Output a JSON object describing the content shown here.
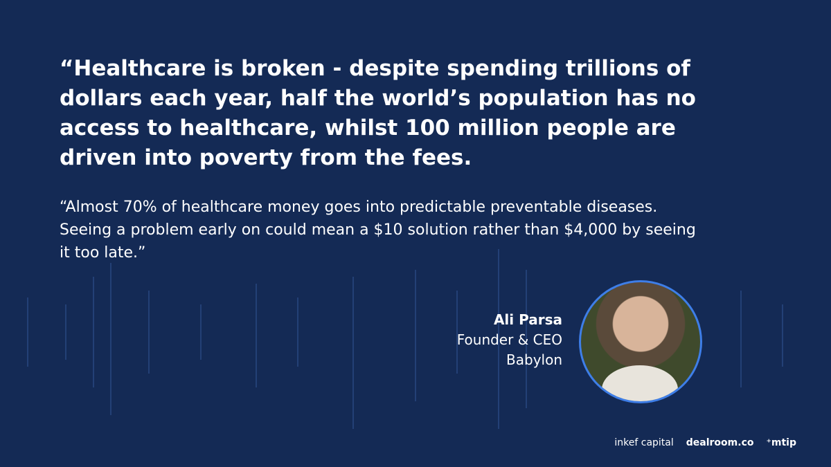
{
  "quote": {
    "headline": "“Healthcare is broken - despite spending trillions of dollars each year, half the world’s population has no access to healthcare, whilst 100 million people are driven into poverty from the fees.",
    "body": "“Almost 70% of healthcare money goes into predictable preventable diseases. Seeing a problem early on could mean a $10 solution rather than $4,000 by seeing it too late.”"
  },
  "person": {
    "name": "Ali Parsa",
    "role": "Founder & CEO",
    "company": "Babylon"
  },
  "logos": [
    "inkef capital",
    "dealroom.co",
    "⁺mtip"
  ]
}
